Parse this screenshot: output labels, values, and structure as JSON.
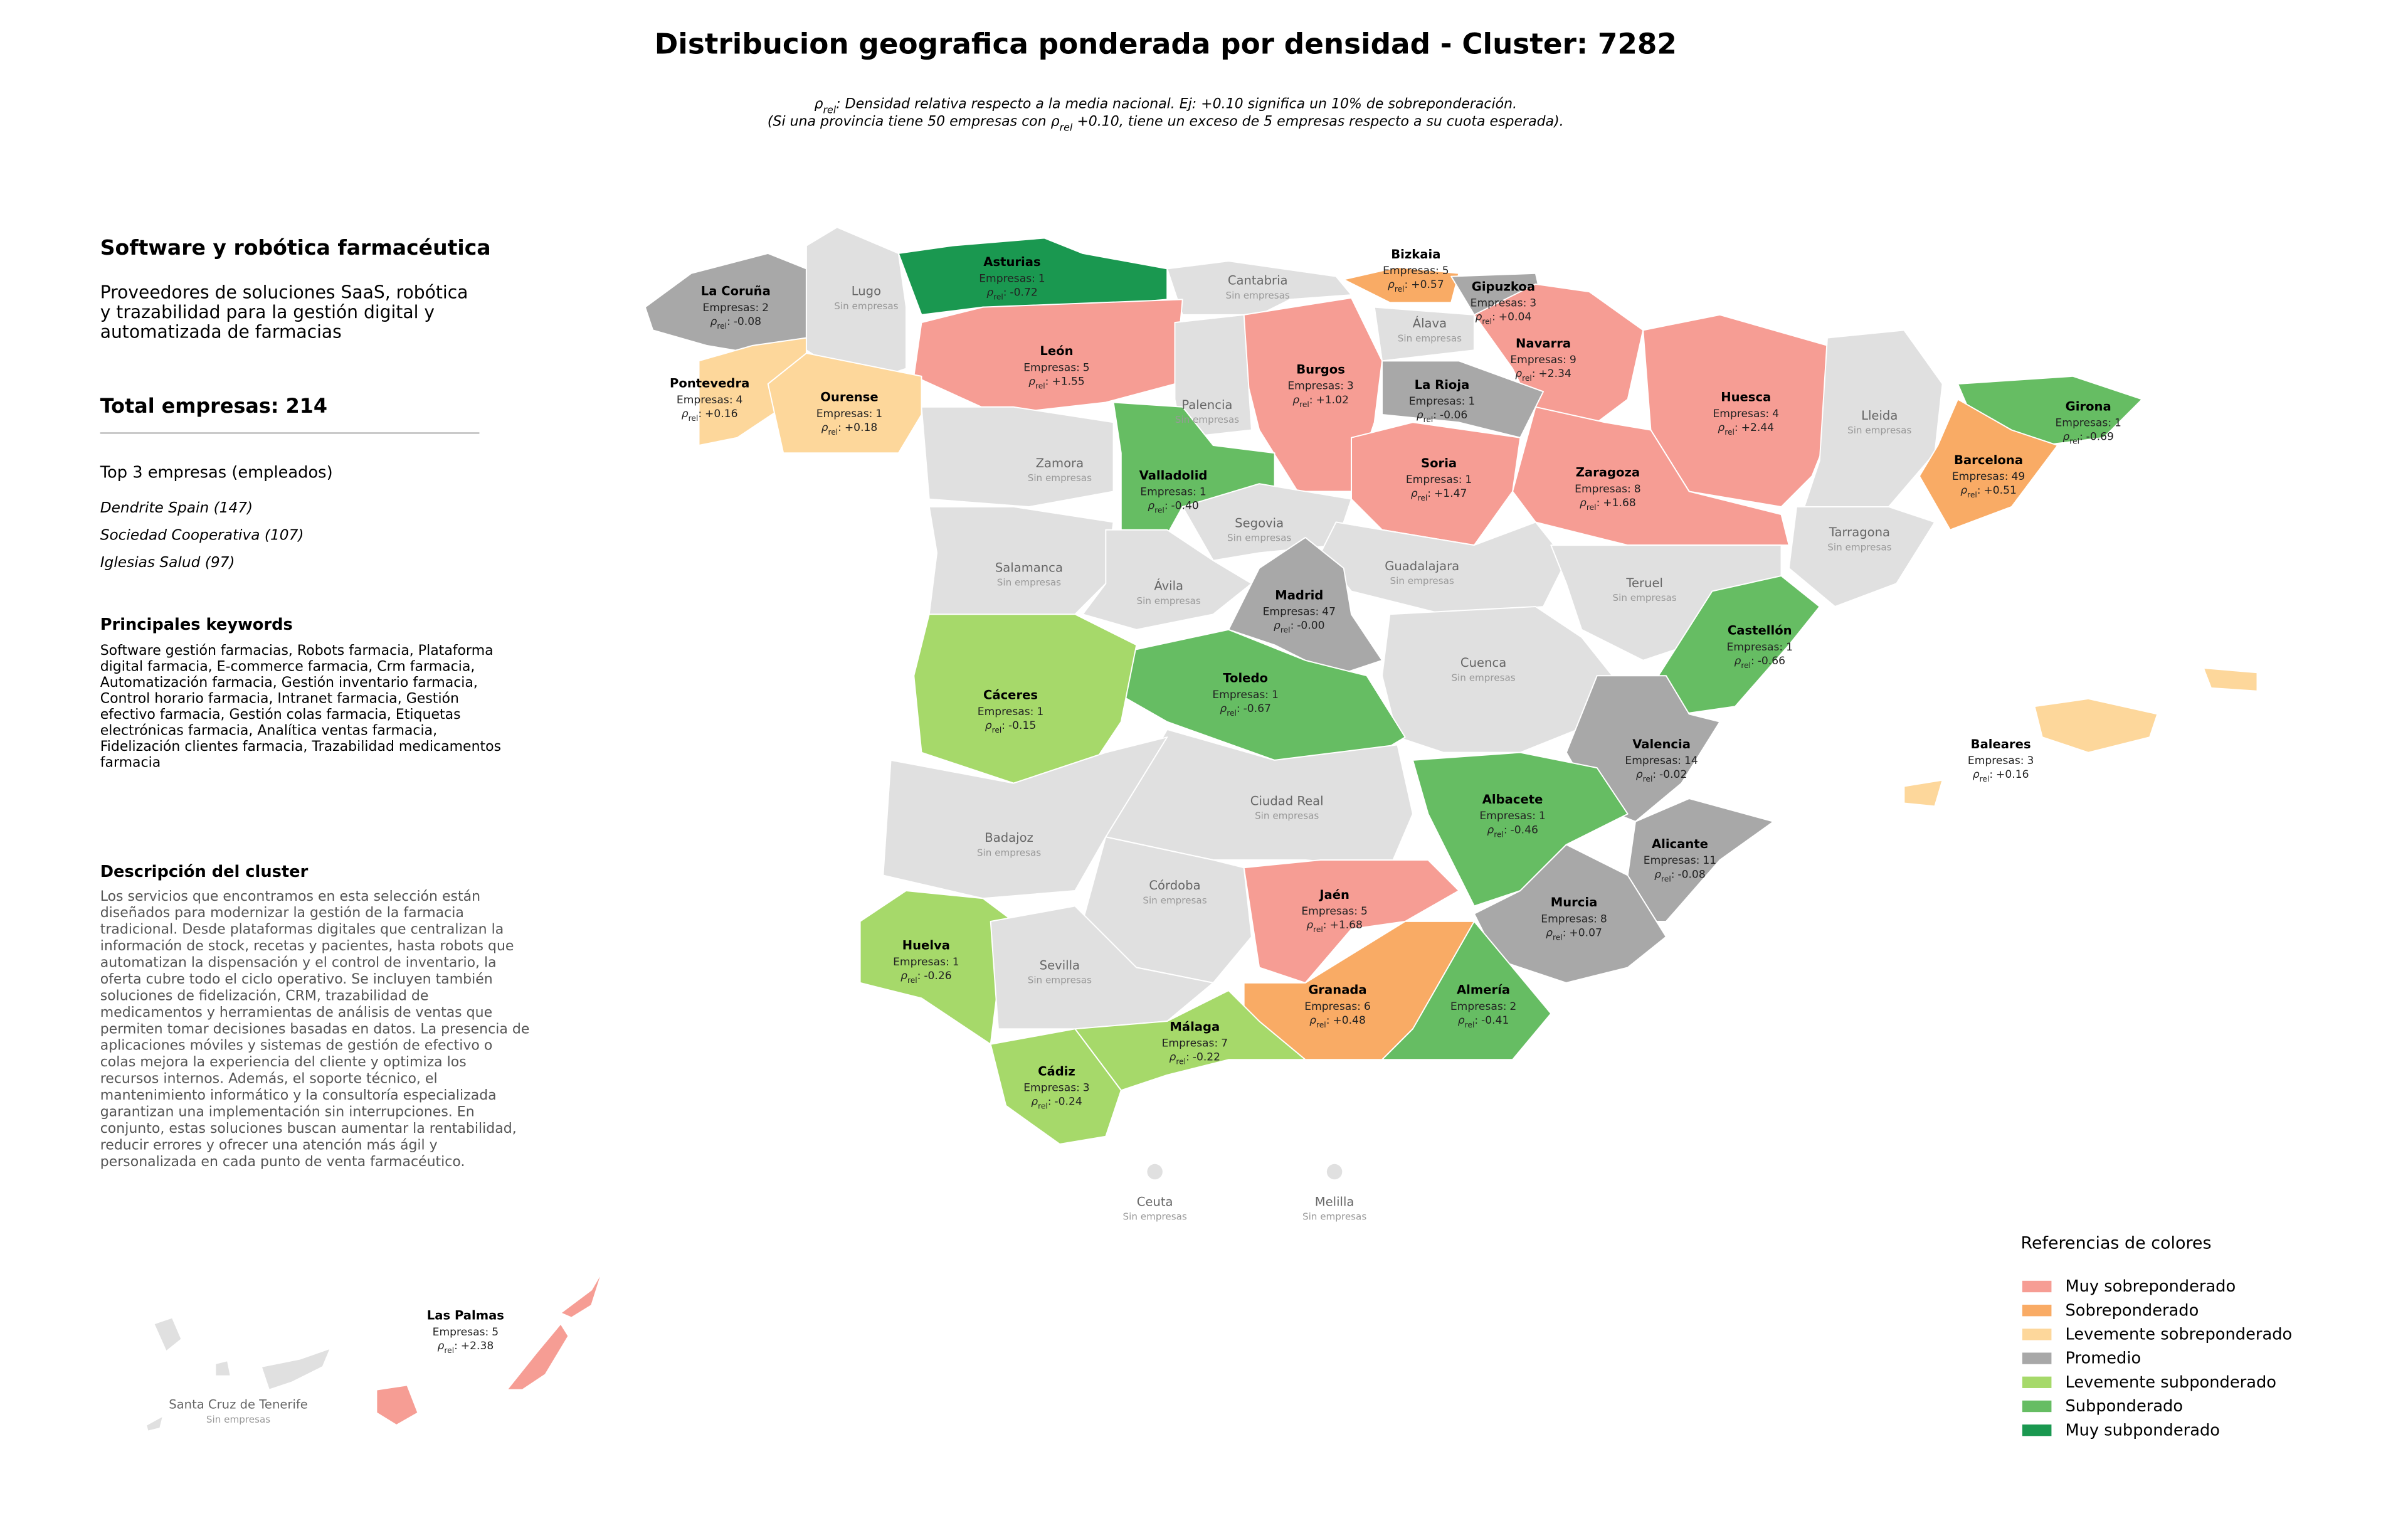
{
  "header": {
    "title": "Distribucion geografica ponderada por densidad - Cluster: 7282",
    "subtitle": [
      [
        {
          "text": "ρ"
        },
        {
          "text": "rel",
          "sub": true
        },
        {
          "text": ": Densidad relativa respecto a la media nacional. Ej: +0.10 significa un 10% de sobreponderación."
        }
      ],
      [
        {
          "text": "(Si una provincia tiene 50 empresas con "
        },
        {
          "text": "ρ"
        },
        {
          "text": "rel",
          "sub": true
        },
        {
          "text": " +0.10, tiene un exceso de 5 empresas respecto a su cuota esperada)."
        }
      ]
    ]
  },
  "panel": {
    "title": "Software y robótica farmacéutica",
    "description": [
      "Proveedores de soluciones SaaS, robótica",
      "y trazabilidad para la gestión digital y",
      "automatizada de farmacias"
    ],
    "total": "Total empresas: 214",
    "top_title": "Top 3 empresas (empleados)",
    "top": [
      "Dendrite Spain (147)",
      "Sociedad Cooperativa (107)",
      "Iglesias Salud (97)"
    ],
    "keywords_title": "Principales keywords",
    "keywords": [
      "Software gestión farmacias, Robots farmacia, Plataforma",
      "digital farmacia, E-commerce farmacia, Crm farmacia,",
      "Automatización farmacia, Gestión inventario farmacia,",
      "Control horario farmacia, Intranet farmacia, Gestión",
      "efectivo farmacia, Gestión colas farmacia, Etiquetas",
      "electrónicas farmacia, Analítica ventas farmacia,",
      "Fidelización clientes farmacia, Trazabilidad medicamentos",
      "farmacia"
    ],
    "cluster_title": "Descripción del cluster",
    "cluster_text": [
      "Los servicios que encontramos en esta selección están",
      "diseñados para modernizar la gestión de la farmacia",
      "tradicional. Desde plataformas digitales que centralizan la",
      "información de stock, recetas y pacientes, hasta robots que",
      "automatizan la dispensación y el control de inventario, la",
      "oferta cubre todo el ciclo operativo. Se incluyen también",
      "soluciones de fidelización, CRM, trazabilidad de",
      "medicamentos y herramientas de análisis de ventas que",
      "permiten tomar decisiones basadas en datos. La presencia de",
      "aplicaciones móviles y sistemas de gestión de efectivo o",
      "colas mejora la experiencia del cliente y optimiza los",
      "recursos internos. Además, el soporte técnico, el",
      "mantenimiento informático y la consultoría especializada",
      "garantizan una implementación sin interrupciones. En",
      "conjunto, estas soluciones buscan aumentar la rentabilidad,",
      "reducir errores y ofrecer una atención más ágil y",
      "personalizada en cada punto de venta farmacéutico."
    ]
  },
  "map": {
    "empresas_label": "Empresas:",
    "rho_symbol": "ρ",
    "rho_sub": "rel",
    "rho_sep": ":",
    "no_data_color": "#e0e0e0",
    "provinces": [
      {
        "name": "La Coruña",
        "empresas": 2,
        "rho": "-0.08",
        "category": 3
      },
      {
        "name": "Lugo",
        "status": "Sin empresas",
        "category": null
      },
      {
        "name": "Asturias",
        "empresas": 1,
        "rho": "-0.72",
        "category": 6
      },
      {
        "name": "Cantabria",
        "status": "Sin empresas",
        "category": null
      },
      {
        "name": "Bizkaia",
        "empresas": 5,
        "rho": "+0.57",
        "category": 1
      },
      {
        "name": "Gipuzkoa",
        "empresas": 3,
        "rho": "+0.04",
        "category": 3
      },
      {
        "name": "Álava",
        "status": "Sin empresas",
        "category": null
      },
      {
        "name": "Navarra",
        "empresas": 9,
        "rho": "+2.34",
        "category": 0
      },
      {
        "name": "León",
        "empresas": 5,
        "rho": "+1.55",
        "category": 0
      },
      {
        "name": "Pontevedra",
        "empresas": 4,
        "rho": "+0.16",
        "category": 2
      },
      {
        "name": "Ourense",
        "empresas": 1,
        "rho": "+0.18",
        "category": 2
      },
      {
        "name": "Burgos",
        "empresas": 3,
        "rho": "+1.02",
        "category": 0
      },
      {
        "name": "La Rioja",
        "empresas": 1,
        "rho": "-0.06",
        "category": 3
      },
      {
        "name": "Palencia",
        "status": "Sin empresas",
        "category": null
      },
      {
        "name": "Huesca",
        "empresas": 4,
        "rho": "+2.44",
        "category": 0
      },
      {
        "name": "Lleida",
        "status": "Sin empresas",
        "category": null
      },
      {
        "name": "Girona",
        "empresas": 1,
        "rho": "-0.69",
        "category": 5
      },
      {
        "name": "Barcelona",
        "empresas": 49,
        "rho": "+0.51",
        "category": 1
      },
      {
        "name": "Zamora",
        "status": "Sin empresas",
        "category": null
      },
      {
        "name": "Valladolid",
        "empresas": 1,
        "rho": "-0.40",
        "category": 5
      },
      {
        "name": "Soria",
        "empresas": 1,
        "rho": "+1.47",
        "category": 0
      },
      {
        "name": "Zaragoza",
        "empresas": 8,
        "rho": "+1.68",
        "category": 0
      },
      {
        "name": "Segovia",
        "status": "Sin empresas",
        "category": null
      },
      {
        "name": "Tarragona",
        "status": "Sin empresas",
        "category": null
      },
      {
        "name": "Salamanca",
        "status": "Sin empresas",
        "category": null
      },
      {
        "name": "Ávila",
        "status": "Sin empresas",
        "category": null
      },
      {
        "name": "Guadalajara",
        "status": "Sin empresas",
        "category": null
      },
      {
        "name": "Teruel",
        "status": "Sin empresas",
        "category": null
      },
      {
        "name": "Madrid",
        "empresas": 47,
        "rho": "-0.00",
        "category": 3
      },
      {
        "name": "Castellón",
        "empresas": 1,
        "rho": "-0.66",
        "category": 5
      },
      {
        "name": "Cuenca",
        "status": "Sin empresas",
        "category": null
      },
      {
        "name": "Toledo",
        "empresas": 1,
        "rho": "-0.67",
        "category": 5
      },
      {
        "name": "Cáceres",
        "empresas": 1,
        "rho": "-0.15",
        "category": 4
      },
      {
        "name": "Valencia",
        "empresas": 14,
        "rho": "-0.02",
        "category": 3
      },
      {
        "name": "Baleares",
        "empresas": 3,
        "rho": "+0.16",
        "category": 2
      },
      {
        "name": "Ciudad Real",
        "status": "Sin empresas",
        "category": null
      },
      {
        "name": "Albacete",
        "empresas": 1,
        "rho": "-0.46",
        "category": 5
      },
      {
        "name": "Badajoz",
        "status": "Sin empresas",
        "category": null
      },
      {
        "name": "Alicante",
        "empresas": 11,
        "rho": "-0.08",
        "category": 3
      },
      {
        "name": "Córdoba",
        "status": "Sin empresas",
        "category": null
      },
      {
        "name": "Jaén",
        "empresas": 5,
        "rho": "+1.68",
        "category": 0
      },
      {
        "name": "Murcia",
        "empresas": 8,
        "rho": "+0.07",
        "category": 3
      },
      {
        "name": "Huelva",
        "empresas": 1,
        "rho": "-0.26",
        "category": 4
      },
      {
        "name": "Sevilla",
        "status": "Sin empresas",
        "category": null
      },
      {
        "name": "Granada",
        "empresas": 6,
        "rho": "+0.48",
        "category": 1
      },
      {
        "name": "Almería",
        "empresas": 2,
        "rho": "-0.41",
        "category": 5
      },
      {
        "name": "Málaga",
        "empresas": 7,
        "rho": "-0.22",
        "category": 4
      },
      {
        "name": "Cádiz",
        "empresas": 3,
        "rho": "-0.24",
        "category": 4
      },
      {
        "name": "Ceuta",
        "status": "Sin empresas",
        "category": null
      },
      {
        "name": "Melilla",
        "status": "Sin empresas",
        "category": null
      },
      {
        "name": "Las Palmas",
        "empresas": 5,
        "rho": "+2.38",
        "category": 0
      },
      {
        "name": "Santa Cruz de Tenerife",
        "status": "Sin empresas",
        "category": null
      }
    ]
  },
  "legend": {
    "title": "Referencias de colores",
    "items": [
      {
        "label": "Muy sobreponderado",
        "color": "#f69d94"
      },
      {
        "label": "Sobreponderado",
        "color": "#f9ab65"
      },
      {
        "label": "Levemente sobreponderado",
        "color": "#fdd79b"
      },
      {
        "label": "Promedio",
        "color": "#a8a8a8"
      },
      {
        "label": "Levemente subponderado",
        "color": "#a6d96a"
      },
      {
        "label": "Subponderado",
        "color": "#66bd63"
      },
      {
        "label": "Muy subponderado",
        "color": "#1a9850"
      }
    ]
  }
}
